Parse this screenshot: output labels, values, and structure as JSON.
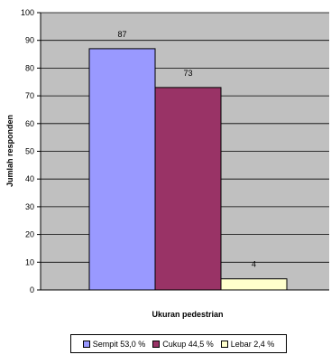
{
  "chart_data": {
    "type": "bar",
    "title": "",
    "xlabel": "Ukuran pedestrian",
    "ylabel": "Jumlah responden",
    "ylim": [
      0,
      100
    ],
    "yticks": [
      0,
      10,
      20,
      30,
      40,
      50,
      60,
      70,
      80,
      90,
      100
    ],
    "grid": true,
    "legend_position": "bottom",
    "plot_background": "#c0c0c0",
    "series": [
      {
        "name": "Sempit  53,0 %",
        "value": 87,
        "label": "87",
        "color": "#9999ff"
      },
      {
        "name": "Cukup 44,5 %",
        "value": 73,
        "label": "73",
        "color": "#993366"
      },
      {
        "name": "Lebar 2,4 %",
        "value": 4,
        "label": "4",
        "color": "#ffffcc"
      }
    ]
  }
}
